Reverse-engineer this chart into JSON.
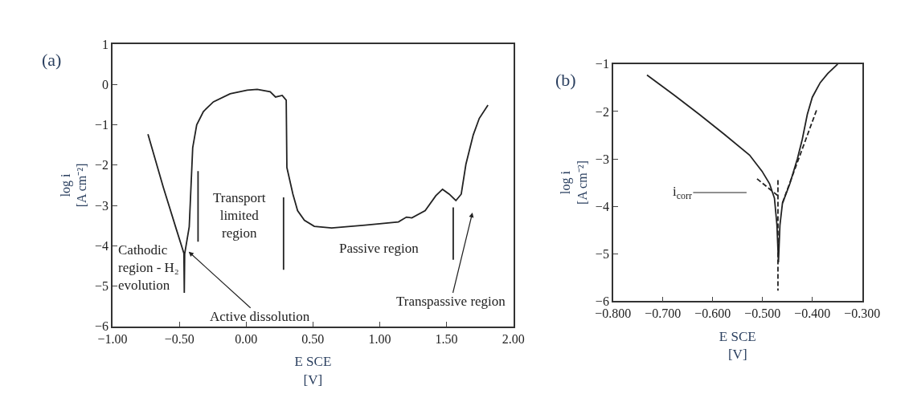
{
  "chart_data": [
    {
      "type": "line",
      "title": "(a)",
      "xlabel": "E SCE\n[V]",
      "ylabel": "log i\n[A cm⁻²]",
      "xlim": [
        -1,
        2
      ],
      "ylim": [
        -6,
        1
      ],
      "xticks": [
        {
          "value": -1,
          "label": "−1.00"
        },
        {
          "value": -0.5,
          "label": "−0.50"
        },
        {
          "value": 0,
          "label": "0.00"
        },
        {
          "value": 0.5,
          "label": "0.50"
        },
        {
          "value": 1,
          "label": "1.00"
        },
        {
          "value": 1.5,
          "label": "1.50"
        },
        {
          "value": 2,
          "label": "2.00"
        }
      ],
      "yticks": [
        {
          "value": -6,
          "label": "−6"
        },
        {
          "value": -5,
          "label": "−5"
        },
        {
          "value": -4,
          "label": "−4"
        },
        {
          "value": -3,
          "label": "−3"
        },
        {
          "value": -2,
          "label": "−2"
        },
        {
          "value": -1,
          "label": "−1"
        },
        0,
        1
      ],
      "marker": "none",
      "series": [
        {
          "color": "#222222",
          "line_style": "solid",
          "x": [
            -0.735,
            -0.62,
            -0.52,
            -0.466,
            -0.463,
            -0.46,
            -0.426,
            -0.4,
            -0.37,
            -0.32,
            -0.245,
            -0.12,
            0.008,
            0.083,
            0.18,
            0.22,
            0.27,
            0.3,
            0.305,
            0.35,
            0.385,
            0.436,
            0.51,
            0.64,
            0.89,
            1.14,
            1.2,
            1.24,
            1.34,
            1.42,
            1.47,
            1.52,
            1.57,
            1.61,
            1.645,
            1.7,
            1.745,
            1.81
          ],
          "values": [
            -1.23,
            -2.55,
            -3.62,
            -4.19,
            -5.17,
            -4.2,
            -3.53,
            -1.57,
            -1.0,
            -0.67,
            -0.43,
            -0.23,
            -0.14,
            -0.12,
            -0.18,
            -0.31,
            -0.27,
            -0.39,
            -2.06,
            -2.72,
            -3.13,
            -3.37,
            -3.52,
            -3.56,
            -3.49,
            -3.41,
            -3.29,
            -3.31,
            -3.13,
            -2.76,
            -2.6,
            -2.72,
            -2.88,
            -2.72,
            -1.98,
            -1.25,
            -0.84,
            -0.51
          ]
        },
        {
          "color": "#222222",
          "line_style": "solid",
          "x": [
            -0.36,
            -0.36
          ],
          "values": [
            -2.15,
            -3.9
          ]
        },
        {
          "color": "#222222",
          "line_style": "solid",
          "x": [
            0.28,
            0.28
          ],
          "values": [
            -2.8,
            -4.6
          ]
        },
        {
          "color": "#222222",
          "line_style": "solid",
          "x": [
            1.55,
            1.55
          ],
          "values": [
            -3.05,
            -4.35
          ]
        }
      ],
      "annotations": [
        "Cathodic\nregion - H₂\nevolution",
        {
          "text": "Active dissolution",
          "x": -0.43,
          "y": -4.15
        },
        "Transport\nlimited\nregion",
        "Passive region",
        "Transpassive region"
      ]
    },
    {
      "type": "line",
      "title": "(b)",
      "xlabel": "E SCE\n[V]",
      "ylabel": "log i\n[A cm⁻²]",
      "xlim": [
        -0.8,
        -0.3
      ],
      "ylim": [
        -6,
        -1
      ],
      "xticks": [
        {
          "value": -0.8,
          "label": "−0.800"
        },
        {
          "value": -0.7,
          "label": "−0.700"
        },
        {
          "value": -0.6,
          "label": "−0.600"
        },
        {
          "value": -0.5,
          "label": "−0.500"
        },
        {
          "value": -0.4,
          "label": "−0.400"
        },
        {
          "value": -0.3,
          "label": "−0.300"
        }
      ],
      "yticks": [
        {
          "value": -6,
          "label": "−6"
        },
        {
          "value": -5,
          "label": "−5"
        },
        {
          "value": -4,
          "label": "−4"
        },
        {
          "value": -3,
          "label": "−3"
        },
        {
          "value": -2,
          "label": "−2"
        },
        {
          "value": -1,
          "label": "−1"
        }
      ],
      "marker": "none",
      "series": [
        {
          "color": "#222222",
          "line_style": "solid",
          "x": [
            -0.732,
            -0.678,
            -0.627,
            -0.577,
            -0.526,
            -0.501,
            -0.486,
            -0.476,
            -0.471,
            -0.468,
            -0.465,
            -0.46,
            -0.445,
            -0.43,
            -0.42,
            -0.41,
            -0.4,
            -0.384,
            -0.369,
            -0.349
          ],
          "values": [
            -1.23,
            -1.65,
            -2.06,
            -2.48,
            -2.92,
            -3.26,
            -3.52,
            -3.83,
            -4.4,
            -5.18,
            -4.4,
            -3.94,
            -3.52,
            -3.0,
            -2.58,
            -2.06,
            -1.7,
            -1.39,
            -1.2,
            -1.0
          ]
        },
        {
          "color": "#222222",
          "line_style": "dashed",
          "x": [
            -0.511,
            -0.47
          ],
          "values": [
            -3.42,
            -3.77
          ]
        },
        {
          "color": "#222222",
          "line_style": "dashed",
          "x": [
            -0.46,
            -0.39
          ],
          "values": [
            -3.93,
            -1.93
          ]
        },
        {
          "color": "#222222",
          "line_style": "dashed",
          "x": [
            -0.469,
            -0.469
          ],
          "values": [
            -3.45,
            -5.78
          ]
        }
      ],
      "annotations": [
        "i$_{corr}$"
      ]
    }
  ]
}
